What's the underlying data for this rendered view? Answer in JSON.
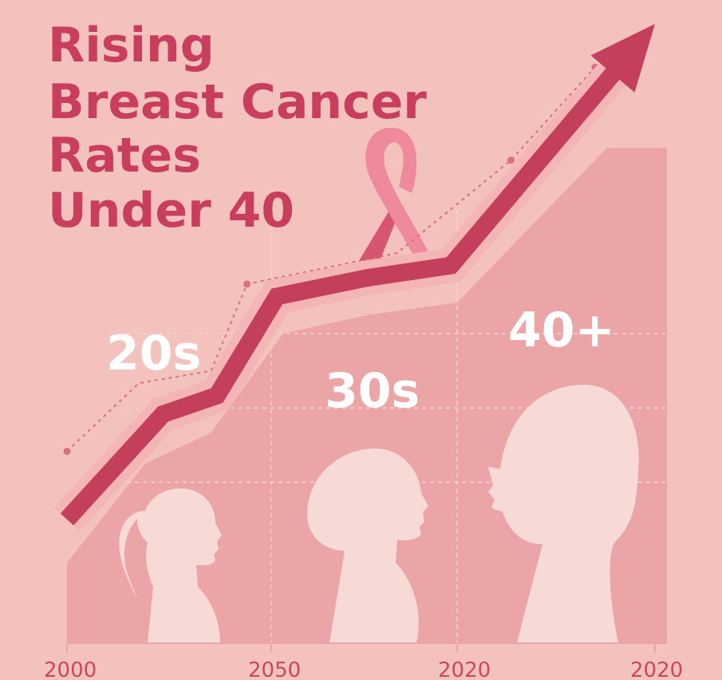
{
  "chart_data": {
    "type": "area",
    "title_lines": [
      "Rising",
      "Breast Cancer",
      "Rates",
      "Under 40"
    ],
    "x_tick_labels": [
      "2000",
      "2050",
      "2020",
      "2020"
    ],
    "age_groups": [
      "20s",
      "30s",
      "40+"
    ],
    "area_series": [
      {
        "x": 0,
        "y": 13
      },
      {
        "x": 0.13,
        "y": 29
      },
      {
        "x": 0.24,
        "y": 34
      },
      {
        "x": 0.36,
        "y": 50
      },
      {
        "x": 0.5,
        "y": 53
      },
      {
        "x": 0.65,
        "y": 55
      },
      {
        "x": 0.9,
        "y": 80
      },
      {
        "x": 1.0,
        "y": 80
      }
    ],
    "trend_arrow": [
      {
        "x": 0,
        "y": 20
      },
      {
        "x": 0.16,
        "y": 37
      },
      {
        "x": 0.25,
        "y": 40
      },
      {
        "x": 0.35,
        "y": 56
      },
      {
        "x": 0.5,
        "y": 59
      },
      {
        "x": 0.64,
        "y": 61
      },
      {
        "x": 0.98,
        "y": 100
      }
    ],
    "dotted_series": [
      {
        "x": 0,
        "y": 31
      },
      {
        "x": 0.12,
        "y": 42
      },
      {
        "x": 0.24,
        "y": 44
      },
      {
        "x": 0.3,
        "y": 58
      },
      {
        "x": 0.55,
        "y": 63
      },
      {
        "x": 0.74,
        "y": 78
      },
      {
        "x": 0.88,
        "y": 93
      }
    ],
    "dotted_markers_x": [
      0,
      0.3,
      0.74,
      0.88
    ],
    "xlim": [
      0,
      1
    ],
    "ylim": [
      0,
      100
    ],
    "grid": true,
    "colors": {
      "background": "#f4c2bd",
      "area": "#eca5a7",
      "arrow": "#c43f5b",
      "arrow_halo": "#f4b5b5",
      "dotted": "#d8707d",
      "grid": "#f7d2d0",
      "silhouette": "#f7d9d6",
      "ribbon_light": "#ee8a9c",
      "ribbon_dark": "#d6566f",
      "title": "#c83e5c",
      "labels": "#ffffff",
      "ticks": "#c8485f"
    }
  }
}
